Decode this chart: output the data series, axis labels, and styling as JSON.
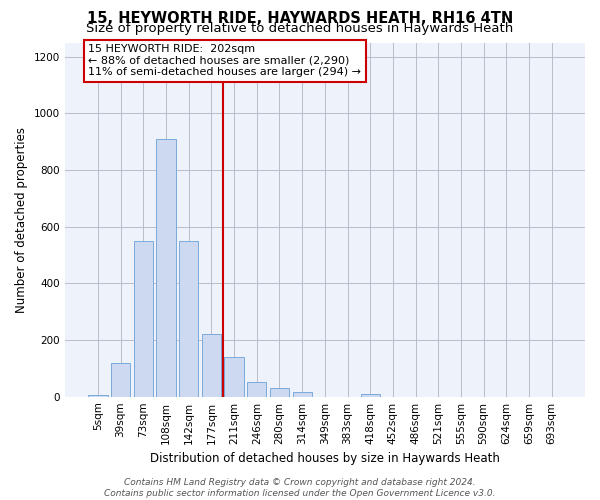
{
  "title_line1": "15, HEYWORTH RIDE, HAYWARDS HEATH, RH16 4TN",
  "title_line2": "Size of property relative to detached houses in Haywards Heath",
  "xlabel": "Distribution of detached houses by size in Haywards Heath",
  "ylabel": "Number of detached properties",
  "footer_line1": "Contains HM Land Registry data © Crown copyright and database right 2024.",
  "footer_line2": "Contains public sector information licensed under the Open Government Licence v3.0.",
  "categories": [
    "5sqm",
    "39sqm",
    "73sqm",
    "108sqm",
    "142sqm",
    "177sqm",
    "211sqm",
    "246sqm",
    "280sqm",
    "314sqm",
    "349sqm",
    "383sqm",
    "418sqm",
    "452sqm",
    "486sqm",
    "521sqm",
    "555sqm",
    "590sqm",
    "624sqm",
    "659sqm",
    "693sqm"
  ],
  "values": [
    5,
    120,
    550,
    910,
    550,
    220,
    140,
    53,
    32,
    18,
    0,
    0,
    10,
    0,
    0,
    0,
    0,
    0,
    0,
    0,
    0
  ],
  "bar_color": "#ccd9f0",
  "bar_edge_color": "#7aaadc",
  "vline_x": 5.5,
  "vline_color": "#cc0000",
  "annotation_line1": "15 HEYWORTH RIDE:  202sqm",
  "annotation_line2": "← 88% of detached houses are smaller (2,290)",
  "annotation_line3": "11% of semi-detached houses are larger (294) →",
  "annotation_box_color": "#ffffff",
  "annotation_box_edge_color": "#cc0000",
  "ylim": [
    0,
    1250
  ],
  "yticks": [
    0,
    200,
    400,
    600,
    800,
    1000,
    1200
  ],
  "background_color": "#eef2fb",
  "grid_color": "#bbbbcc",
  "title_fontsize": 10.5,
  "subtitle_fontsize": 9.5,
  "axis_label_fontsize": 8.5,
  "tick_fontsize": 7.5,
  "annotation_fontsize": 8,
  "footer_fontsize": 6.5
}
